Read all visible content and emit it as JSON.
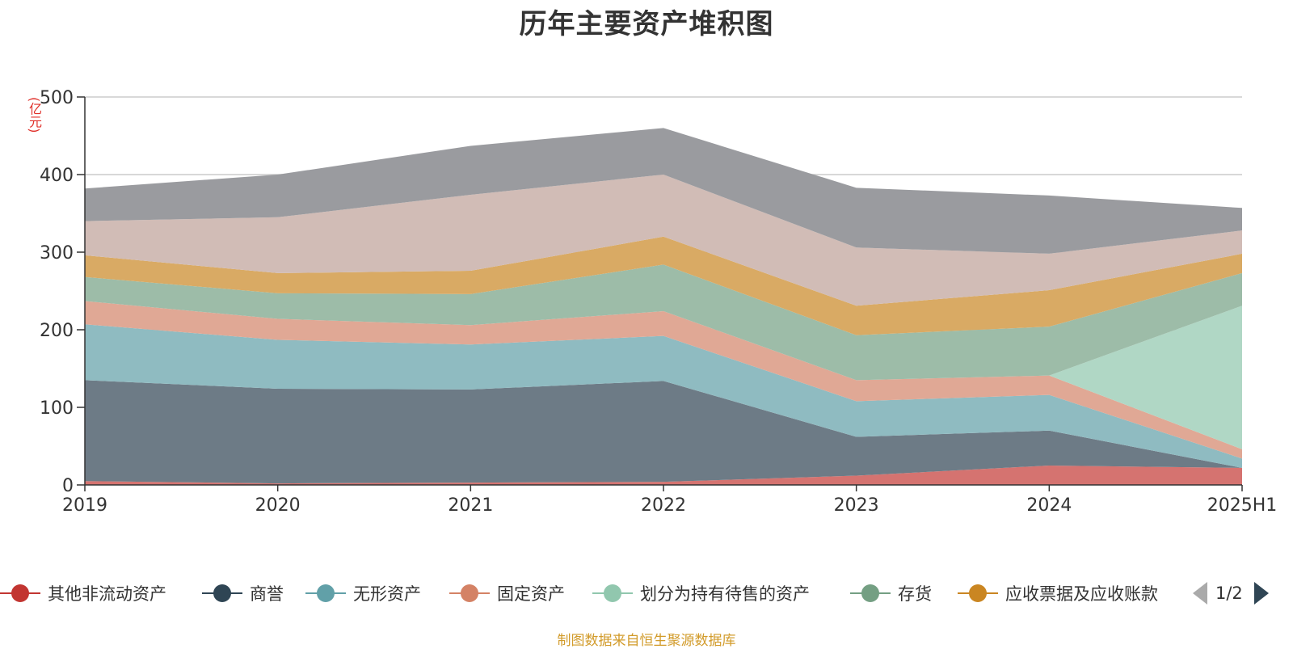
{
  "title": "历年主要资产堆积图",
  "unit_label": "(亿元)",
  "footer": "制图数据来自恒生聚源数据库",
  "legend_pager": "1/2",
  "chart_data": {
    "type": "area",
    "stacked": true,
    "categories": [
      "2019",
      "2020",
      "2021",
      "2022",
      "2023",
      "2024",
      "2025H1"
    ],
    "ylim": [
      0,
      500
    ],
    "yticks": [
      0,
      100,
      200,
      300,
      400,
      500
    ],
    "grid": true,
    "legend_position": "bottom",
    "series": [
      {
        "name": "其他非流动资产",
        "color": "#c23531",
        "fill": "#d57370",
        "values": [
          5,
          2,
          3,
          4,
          12,
          25,
          22
        ]
      },
      {
        "name": "商誉",
        "color": "#2f4554",
        "fill": "#6d7b86",
        "values": [
          130,
          122,
          120,
          130,
          50,
          45,
          0
        ]
      },
      {
        "name": "无形资产",
        "color": "#61a0a8",
        "fill": "#8fbbc1",
        "values": [
          72,
          63,
          58,
          58,
          46,
          46,
          12
        ]
      },
      {
        "name": "固定资产",
        "color": "#d48265",
        "fill": "#e0a895",
        "values": [
          30,
          27,
          25,
          32,
          27,
          25,
          12
        ]
      },
      {
        "name": "划分为持有待售的资产",
        "color": "#91c7ae",
        "fill": "#b0d7c5",
        "values": [
          0,
          0,
          0,
          0,
          0,
          0,
          185
        ]
      },
      {
        "name": "存货",
        "color": "#749f83",
        "fill": "#9dbca8",
        "values": [
          31,
          33,
          40,
          60,
          58,
          63,
          42
        ]
      },
      {
        "name": "应收票据及应收账款",
        "color": "#ca8622",
        "fill": "#d9aa64",
        "values": [
          28,
          26,
          30,
          36,
          38,
          47,
          25
        ]
      },
      {
        "name": "",
        "color": "#bda29a",
        "fill": "#d1bcb6",
        "values": [
          44,
          72,
          98,
          80,
          75,
          47,
          30
        ]
      },
      {
        "name": "",
        "color": "#6e7074",
        "fill": "#9a9b9f",
        "values": [
          42,
          55,
          63,
          60,
          77,
          75,
          29
        ]
      }
    ]
  }
}
